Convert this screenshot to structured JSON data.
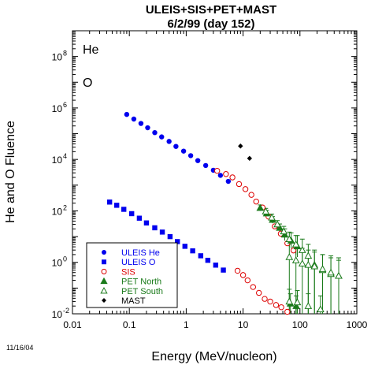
{
  "chart_data": {
    "type": "scatter",
    "title": "ULEIS+SIS+PET+MAST",
    "subtitle": "6/2/99 (day 152)",
    "xlabel": "Energy (MeV/nucleon)",
    "ylabel": "He and O Fluence",
    "xscale": "log",
    "yscale": "log",
    "xlim": [
      0.01,
      1000
    ],
    "ylim": [
      0.01,
      1000000000
    ],
    "x_ticks": [
      "0.01",
      "0.1",
      "1",
      "10",
      "100",
      "1000"
    ],
    "y_tick_exponents": [
      "-2",
      "0",
      "2",
      "4",
      "6",
      "8"
    ],
    "y_tick_base": "10",
    "panel_labels": [
      "He",
      "O"
    ],
    "date_stamp": "11/16/04",
    "legend_position": "bottom-left",
    "series": [
      {
        "name": "ULEIS He",
        "color": "#0000ee",
        "marker": "circle-filled",
        "points": [
          [
            0.09,
            560000
          ],
          [
            0.12,
            370000
          ],
          [
            0.16,
            250000
          ],
          [
            0.21,
            170000
          ],
          [
            0.28,
            110000
          ],
          [
            0.37,
            75000
          ],
          [
            0.5,
            50000
          ],
          [
            0.66,
            32000
          ],
          [
            0.9,
            21000
          ],
          [
            1.2,
            14000
          ],
          [
            1.6,
            9000
          ],
          [
            2.2,
            5800
          ],
          [
            3.0,
            3800
          ],
          [
            4.0,
            2400
          ],
          [
            5.5,
            1400
          ]
        ]
      },
      {
        "name": "ULEIS O",
        "color": "#0000ee",
        "marker": "square-filled",
        "points": [
          [
            0.045,
            220
          ],
          [
            0.06,
            165
          ],
          [
            0.08,
            115
          ],
          [
            0.11,
            78
          ],
          [
            0.15,
            52
          ],
          [
            0.2,
            34
          ],
          [
            0.28,
            22
          ],
          [
            0.38,
            15
          ],
          [
            0.52,
            10
          ],
          [
            0.7,
            6.4
          ],
          [
            0.95,
            4.2
          ],
          [
            1.3,
            2.8
          ],
          [
            1.8,
            1.8
          ],
          [
            2.4,
            1.2
          ],
          [
            3.3,
            0.78
          ],
          [
            4.5,
            0.5
          ]
        ]
      },
      {
        "name": "SIS",
        "color": "#dd0000",
        "marker": "circle-open",
        "points": [
          [
            3.5,
            3600
          ],
          [
            5,
            2700
          ],
          [
            6.5,
            2000
          ],
          [
            8.5,
            1100
          ],
          [
            11,
            700
          ],
          [
            14,
            420
          ],
          [
            17,
            230
          ],
          [
            22,
            135
          ],
          [
            28,
            60
          ],
          [
            36,
            25
          ],
          [
            46,
            13
          ],
          [
            60,
            5.5
          ],
          [
            77,
            2.9
          ],
          [
            8,
            0.47
          ],
          [
            10,
            0.32
          ],
          [
            12,
            0.2
          ],
          [
            15,
            0.11
          ],
          [
            19,
            0.065
          ],
          [
            24,
            0.038
          ],
          [
            30,
            0.03
          ],
          [
            38,
            0.022
          ],
          [
            47,
            0.018
          ],
          [
            60,
            0.012
          ],
          [
            77,
            0.006
          ]
        ]
      },
      {
        "name": "PET North",
        "color": "#1a7a1a",
        "marker": "triangle-filled",
        "points": [
          [
            20,
            130
          ],
          [
            26,
            80
          ],
          [
            33,
            45
          ],
          [
            44,
            22
          ],
          [
            54,
            12
          ],
          [
            70,
            7
          ],
          [
            90,
            4.2
          ],
          [
            68,
            0.025
          ],
          [
            86,
            0.02
          ]
        ],
        "errors": [
          [
            20,
            100,
            170
          ],
          [
            26,
            60,
            105
          ],
          [
            33,
            33,
            60
          ],
          [
            44,
            15,
            31
          ],
          [
            54,
            7,
            20
          ],
          [
            70,
            3.5,
            14
          ],
          [
            90,
            1.6,
            11
          ],
          [
            68,
            0.01,
            0.06
          ],
          [
            86,
            0.01,
            0.05
          ]
        ]
      },
      {
        "name": "PET South",
        "color": "#1a7a1a",
        "marker": "triangle-open",
        "points": [
          [
            25,
            95
          ],
          [
            32,
            55
          ],
          [
            40,
            30
          ],
          [
            52,
            16
          ],
          [
            65,
            8
          ],
          [
            85,
            5
          ],
          [
            110,
            3
          ],
          [
            140,
            1.8
          ],
          [
            180,
            0.8
          ],
          [
            250,
            0.5
          ],
          [
            350,
            0.35
          ],
          [
            480,
            0.3
          ],
          [
            65,
            0.03
          ],
          [
            90,
            0.028
          ],
          [
            140,
            0.02
          ],
          [
            230,
            0.015
          ],
          [
            65,
            1.6
          ],
          [
            85,
            1.2
          ],
          [
            110,
            0.9
          ],
          [
            140,
            0.8
          ],
          [
            180,
            0.7
          ],
          [
            250,
            0.55
          ],
          [
            350,
            0.4
          ],
          [
            480,
            0.3
          ]
        ],
        "errors": [
          [
            25,
            70,
            125
          ],
          [
            32,
            40,
            75
          ],
          [
            40,
            20,
            42
          ],
          [
            52,
            10,
            25
          ],
          [
            65,
            4,
            15
          ],
          [
            85,
            2,
            11
          ],
          [
            110,
            1,
            8
          ],
          [
            140,
            0.01,
            5
          ],
          [
            180,
            0.01,
            3
          ],
          [
            250,
            0.01,
            2
          ],
          [
            350,
            0.01,
            1.5
          ],
          [
            480,
            0.01,
            1.2
          ],
          [
            65,
            0.01,
            0.09
          ],
          [
            90,
            0.01,
            0.08
          ],
          [
            140,
            0.01,
            0.06
          ],
          [
            230,
            0.01,
            0.05
          ],
          [
            65,
            0.01,
            5
          ],
          [
            85,
            0.01,
            4
          ],
          [
            110,
            0.01,
            3.5
          ],
          [
            140,
            0.01,
            3
          ],
          [
            180,
            0.01,
            2.5
          ],
          [
            250,
            0.01,
            2
          ],
          [
            350,
            0.01,
            1.8
          ],
          [
            480,
            0.01,
            1.5
          ]
        ]
      },
      {
        "name": "MAST",
        "color": "#000000",
        "marker": "diamond-filled",
        "points": [
          [
            9,
            33000
          ],
          [
            13,
            11000
          ]
        ]
      }
    ]
  }
}
